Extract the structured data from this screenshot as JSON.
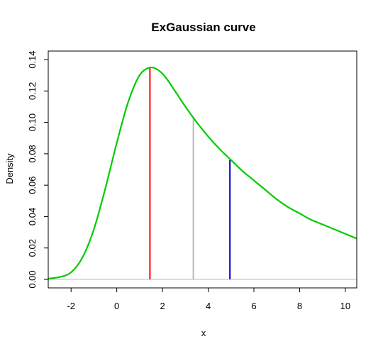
{
  "chart_data": {
    "type": "line",
    "title": "ExGaussian  curve",
    "xlabel": "x",
    "ylabel": "Density",
    "xlim": [
      -3,
      10.5
    ],
    "ylim": [
      0,
      0.14
    ],
    "x_ticks": [
      -2,
      0,
      2,
      4,
      6,
      8,
      10
    ],
    "y_ticks": [
      0.0,
      0.02,
      0.04,
      0.06,
      0.08,
      0.1,
      0.12,
      0.14
    ],
    "y_tick_labels": [
      "0.00",
      "0.02",
      "0.04",
      "0.06",
      "0.08",
      "0.10",
      "0.12",
      "0.14"
    ],
    "grid": false,
    "series": [
      {
        "color": "#00cc00",
        "x": [
          -3,
          -2.5,
          -2,
          -1.5,
          -1,
          -0.5,
          0,
          0.5,
          1,
          1.5,
          2,
          2.5,
          3,
          3.5,
          4,
          4.5,
          5,
          5.5,
          6,
          6.5,
          7,
          7.5,
          8,
          8.5,
          9,
          9.5,
          10,
          10.5
        ],
        "y": [
          0.0005,
          0.0015,
          0.0045,
          0.014,
          0.032,
          0.058,
          0.087,
          0.113,
          0.13,
          0.135,
          0.131,
          0.121,
          0.11,
          0.1,
          0.091,
          0.083,
          0.076,
          0.069,
          0.063,
          0.057,
          0.051,
          0.046,
          0.042,
          0.038,
          0.035,
          0.032,
          0.029,
          0.026
        ]
      }
    ],
    "baseline": {
      "y": 0,
      "color": "#bbbbbb"
    },
    "vertical_lines": [
      {
        "x": 1.45,
        "y_top": 0.135,
        "color": "#ff0000"
      },
      {
        "x": 3.35,
        "y_top": 0.103,
        "color": "#bbbbbb"
      },
      {
        "x": 4.95,
        "y_top": 0.076,
        "color": "#0000cc"
      }
    ]
  }
}
